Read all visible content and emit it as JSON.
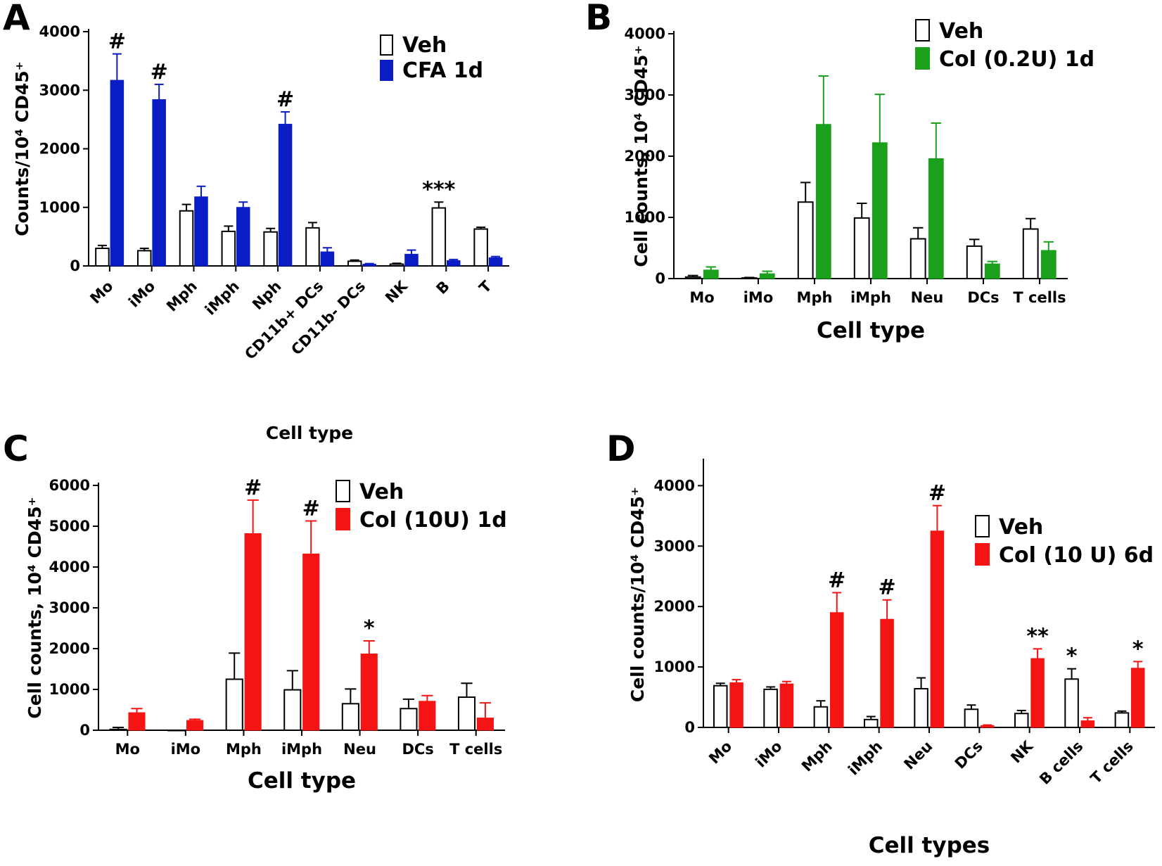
{
  "figure": {
    "extra_label": "Cell type"
  },
  "chart_data": [
    {
      "panel": "A",
      "type": "bar",
      "title": "",
      "xlabel": "",
      "ylabel": "Counts/10⁴ CD45⁺",
      "ylim": [
        0,
        4000
      ],
      "yticks": [
        "0",
        "1000",
        "2000",
        "3000",
        "4000"
      ],
      "categories": [
        "Mo",
        "iMo",
        "Mph",
        "iMph",
        "Nph",
        "CD11b+ DCs",
        "CD11b- DCs",
        "NK",
        "B",
        "T"
      ],
      "series": [
        {
          "name": "Veh",
          "color": "#ffffff",
          "values": [
            300,
            260,
            940,
            590,
            580,
            650,
            80,
            30,
            990,
            630
          ],
          "errors": [
            50,
            40,
            110,
            90,
            60,
            90,
            20,
            15,
            100,
            30
          ]
        },
        {
          "name": "CFA 1d",
          "color": "#0a1dc4",
          "values": [
            3170,
            2840,
            1180,
            1000,
            2420,
            240,
            30,
            200,
            90,
            140
          ],
          "errors": [
            450,
            260,
            180,
            90,
            210,
            70,
            10,
            70,
            20,
            20
          ]
        }
      ],
      "annotations": [
        {
          "category": "Mo",
          "series": 1,
          "text": "#"
        },
        {
          "category": "iMo",
          "series": 1,
          "text": "#"
        },
        {
          "category": "Nph",
          "series": 1,
          "text": "#"
        },
        {
          "category": "B",
          "series": 0,
          "text": "***"
        }
      ],
      "legend_position": "top-right",
      "legend_color": "#0a1dc4"
    },
    {
      "panel": "B",
      "type": "bar",
      "title": "",
      "xlabel": "Cell type",
      "ylabel": "Cell counts, 10⁴ CD45⁺",
      "ylim": [
        0,
        4000
      ],
      "yticks": [
        "0",
        "1000",
        "2000",
        "3000",
        "4000"
      ],
      "categories": [
        "Mo",
        "iMo",
        "Mph",
        "iMph",
        "Neu",
        "DCs",
        "T cells"
      ],
      "series": [
        {
          "name": "Veh",
          "color": "#ffffff",
          "values": [
            25,
            10,
            1250,
            990,
            650,
            530,
            810
          ],
          "errors": [
            25,
            8,
            320,
            240,
            180,
            110,
            170
          ]
        },
        {
          "name": "Col (0.2U) 1d",
          "color": "#1aa01a",
          "values": [
            140,
            80,
            2520,
            2220,
            1960,
            240,
            460
          ],
          "errors": [
            50,
            40,
            790,
            790,
            580,
            40,
            140
          ]
        }
      ],
      "annotations": [],
      "legend_position": "top-right",
      "legend_color": "#1aa01a"
    },
    {
      "panel": "C",
      "type": "bar",
      "title": "",
      "xlabel": "Cell type",
      "ylabel": "Cell counts, 10⁴ CD45⁺",
      "ylim": [
        0,
        6000
      ],
      "yticks": [
        "0",
        "1000",
        "2000",
        "3000",
        "4000",
        "5000",
        "6000"
      ],
      "categories": [
        "Mo",
        "iMo",
        "Mph",
        "iMph",
        "Neu",
        "DCs",
        "T cells"
      ],
      "series": [
        {
          "name": "Veh",
          "color": "#ffffff",
          "values": [
            20,
            0,
            1250,
            990,
            650,
            530,
            810
          ],
          "errors": [
            50,
            0,
            640,
            470,
            360,
            230,
            340
          ]
        },
        {
          "name": "Col (10U) 1d",
          "color": "#f51414",
          "values": [
            430,
            240,
            4820,
            4320,
            1870,
            710,
            300
          ],
          "errors": [
            100,
            30,
            820,
            810,
            320,
            140,
            370
          ]
        }
      ],
      "annotations": [
        {
          "category": "Mph",
          "series": 1,
          "text": "#"
        },
        {
          "category": "iMph",
          "series": 1,
          "text": "#"
        },
        {
          "category": "Neu",
          "series": 1,
          "text": "*"
        }
      ],
      "legend_position": "top-right",
      "legend_color": "#f51414"
    },
    {
      "panel": "D",
      "type": "bar",
      "title": "",
      "xlabel": "Cell types",
      "ylabel": "Cell counts/10⁴ CD45⁺",
      "ylim": [
        0,
        4400
      ],
      "yticks": [
        "0",
        "1000",
        "2000",
        "3000",
        "4000"
      ],
      "categories": [
        "Mo",
        "iMo",
        "Mph",
        "iMph",
        "Neu",
        "DCs",
        "NK",
        "B cells",
        "T cells"
      ],
      "series": [
        {
          "name": "Veh",
          "color": "#ffffff",
          "values": [
            690,
            630,
            340,
            130,
            640,
            300,
            230,
            800,
            240
          ],
          "errors": [
            40,
            40,
            100,
            50,
            180,
            70,
            50,
            170,
            30
          ]
        },
        {
          "name": "Col (10 U) 6d",
          "color": "#f51414",
          "values": [
            740,
            720,
            1900,
            1790,
            3250,
            30,
            1140,
            110,
            980
          ],
          "errors": [
            50,
            40,
            330,
            320,
            420,
            10,
            160,
            50,
            110
          ]
        }
      ],
      "annotations": [
        {
          "category": "Mph",
          "series": 1,
          "text": "#"
        },
        {
          "category": "iMph",
          "series": 1,
          "text": "#"
        },
        {
          "category": "Neu",
          "series": 1,
          "text": "#"
        },
        {
          "category": "NK",
          "series": 1,
          "text": "**"
        },
        {
          "category": "B cells",
          "series": 0,
          "text": "*"
        },
        {
          "category": "T cells",
          "series": 1,
          "text": "*"
        }
      ],
      "legend_position": "top-right",
      "legend_color": "#f51414"
    }
  ]
}
